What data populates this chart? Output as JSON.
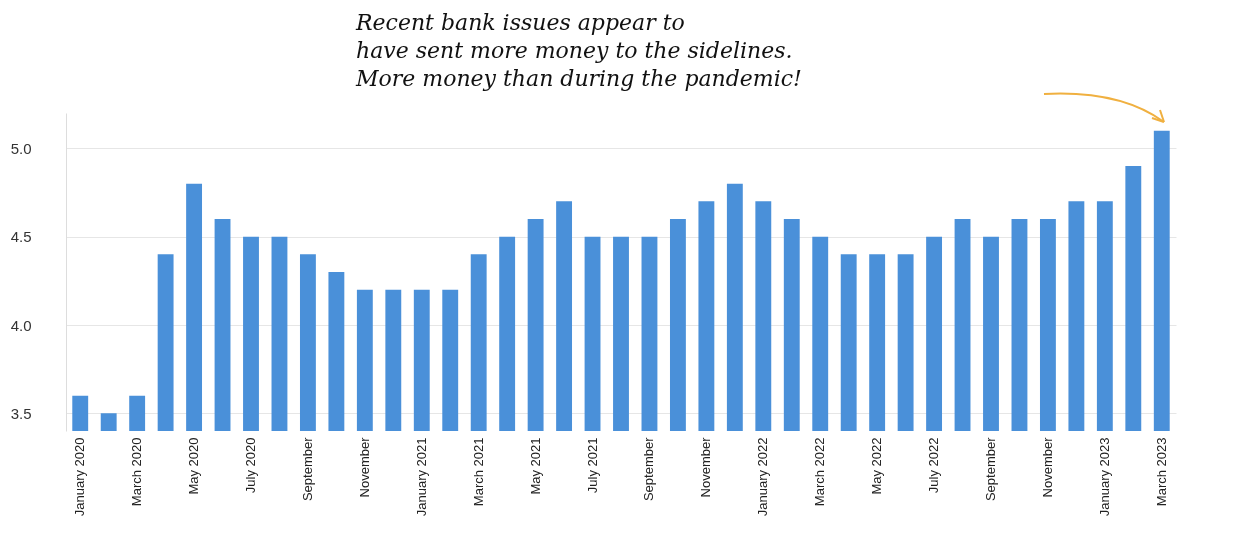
{
  "chart_data": {
    "type": "bar",
    "categories": [
      "January 2020",
      null,
      "March 2020",
      null,
      "May 2020",
      null,
      "July 2020",
      null,
      "September",
      null,
      "November",
      null,
      "January 2021",
      null,
      "March 2021",
      null,
      "May 2021",
      null,
      "July 2021",
      null,
      "September",
      null,
      "November",
      null,
      "January 2022",
      null,
      "March 2022",
      null,
      "May 2022",
      null,
      "July 2022",
      null,
      "September",
      null,
      "November",
      null,
      "January 2023",
      null,
      "March 2023"
    ],
    "values": [
      3.6,
      3.5,
      3.6,
      4.4,
      4.8,
      4.6,
      4.5,
      4.5,
      4.4,
      4.3,
      4.2,
      4.2,
      4.2,
      4.2,
      4.4,
      4.5,
      4.6,
      4.7,
      4.5,
      4.5,
      4.5,
      4.6,
      4.7,
      4.8,
      4.7,
      4.6,
      4.5,
      4.4,
      4.4,
      4.4,
      4.5,
      4.6,
      4.5,
      4.6,
      4.6,
      4.7,
      4.7,
      4.9,
      5.1
    ],
    "color": "#4a90d9",
    "ylim": [
      3.4,
      5.2
    ],
    "yticks": [
      {
        "value": 3.5,
        "label": "3.5"
      },
      {
        "value": 4,
        "label": "4.0"
      },
      {
        "value": 4.5,
        "label": "4.5"
      },
      {
        "value": 5,
        "label": "5.0"
      }
    ],
    "grid": "y",
    "annotations": [
      "Recent bank issues appear to\nhave sent more money to the sidelines.\nMore money than during the pandemic!"
    ]
  }
}
